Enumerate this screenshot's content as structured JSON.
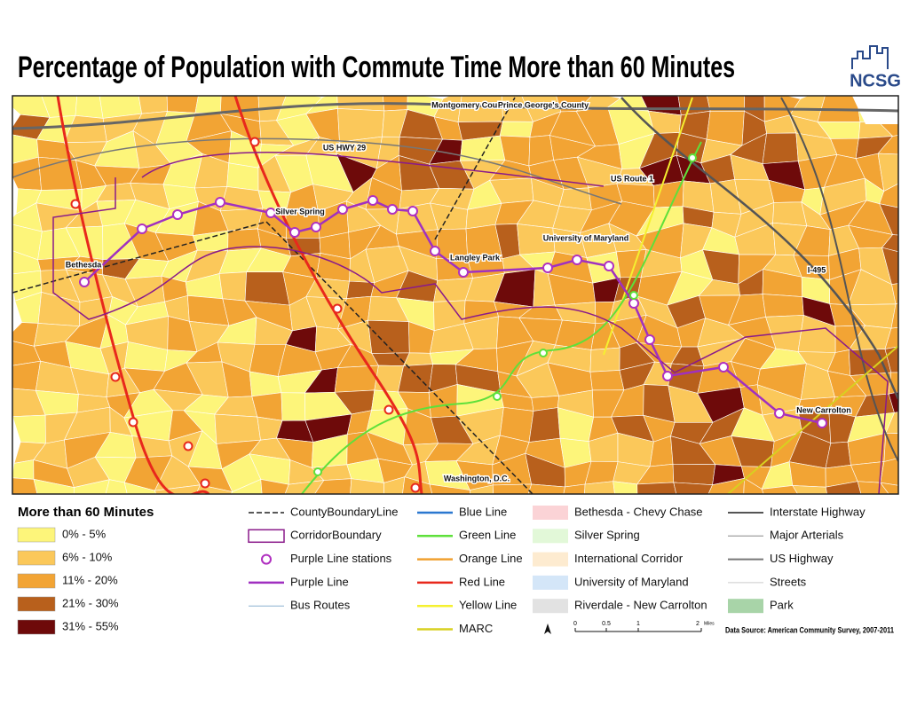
{
  "title": "Percentage of Population with Commute Time More than 60 Minutes",
  "logo": "NCSG",
  "map": {
    "labels": [
      "Montgomery County",
      "Prince George's County",
      "US HWY 29",
      "US Route 1",
      "Silver Spring",
      "University of Maryland",
      "Bethesda",
      "Langley Park",
      "I-495",
      "New Carrolton",
      "Washington, D.C."
    ]
  },
  "legend": {
    "choropleth": {
      "title": "More than 60 Minutes",
      "classes": [
        {
          "label": "0% - 5%",
          "color": "#fdf57a"
        },
        {
          "label": "6% - 10%",
          "color": "#fbc85a"
        },
        {
          "label": "11% - 20%",
          "color": "#f2a434"
        },
        {
          "label": "21% - 30%",
          "color": "#b8601c"
        },
        {
          "label": "31% - 55%",
          "color": "#6e0a0a"
        }
      ]
    },
    "symbols": [
      {
        "label": "CountyBoundaryLine",
        "kind": "dash",
        "color": "#222222"
      },
      {
        "label": "CorridorBoundary",
        "kind": "box",
        "color": "#8a1a8a"
      },
      {
        "label": "Purple Line stations",
        "kind": "station",
        "color": "#b030c0"
      },
      {
        "label": "Purple Line",
        "kind": "line",
        "color": "#a030c0"
      },
      {
        "label": "Bus Routes",
        "kind": "thin",
        "color": "#8ab0d0"
      },
      {
        "label": "Blue Line",
        "kind": "line",
        "color": "#2b78d0"
      },
      {
        "label": "Green Line",
        "kind": "line",
        "color": "#5ee03a"
      },
      {
        "label": "Orange Line",
        "kind": "line",
        "color": "#f0a030"
      },
      {
        "label": "Red Line",
        "kind": "line",
        "color": "#e8281c"
      },
      {
        "label": "Yellow Line",
        "kind": "line",
        "color": "#f5f030"
      },
      {
        "label": "MARC",
        "kind": "line",
        "color": "#d8d020"
      },
      {
        "label": "Bethesda - Chevy Chase",
        "kind": "swatch",
        "color": "#fbd3d6"
      },
      {
        "label": "Silver Spring",
        "kind": "swatch",
        "color": "#e2f8d8"
      },
      {
        "label": "International Corridor",
        "kind": "swatch",
        "color": "#fdebd0"
      },
      {
        "label": "University of Maryland",
        "kind": "swatch",
        "color": "#d4e6f8"
      },
      {
        "label": "Riverdale - New Carrolton",
        "kind": "swatch",
        "color": "#e2e2e2"
      },
      {
        "label": "Interstate Highway",
        "kind": "road",
        "color": "#555555"
      },
      {
        "label": "Major Arterials",
        "kind": "thin",
        "color": "#888888"
      },
      {
        "label": "US Highway",
        "kind": "road",
        "color": "#777777"
      },
      {
        "label": "Streets",
        "kind": "thin",
        "color": "#cccccc"
      },
      {
        "label": "Park",
        "kind": "swatch",
        "color": "#a8d4a8"
      }
    ]
  },
  "scale": {
    "labels": [
      "0",
      "0.5",
      "1",
      "2"
    ],
    "unit": "Miles"
  },
  "source": "Data Source: American Community Survey, 2007-2011"
}
